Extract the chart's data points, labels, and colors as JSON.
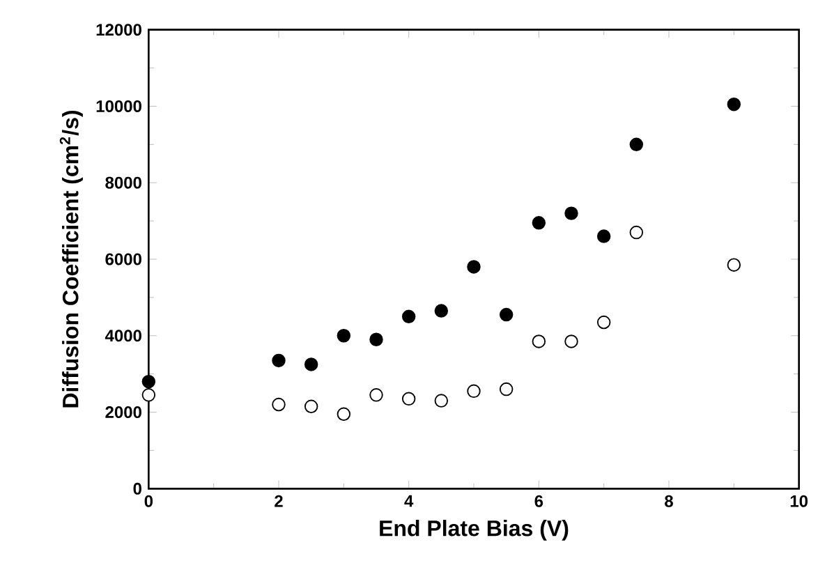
{
  "chart_data": {
    "type": "scatter",
    "xlabel": "End Plate Bias (V)",
    "ylabel": "Diffusion Coefficient (cm$^{2}$/s)",
    "xlim": [
      0,
      10
    ],
    "ylim": [
      0,
      12000
    ],
    "xticks": [
      0,
      2,
      4,
      6,
      8,
      10
    ],
    "yticks": [
      0,
      2000,
      4000,
      6000,
      8000,
      10000,
      12000
    ],
    "marker": "circle",
    "grid": false,
    "x": [
      0,
      2,
      2.5,
      3,
      3.5,
      4,
      4.5,
      5,
      5.5,
      6,
      6.5,
      7,
      7.5,
      9
    ],
    "series": [
      {
        "color": "#000000",
        "values": [
          2800,
          3350,
          3250,
          4000,
          3900,
          4500,
          4650,
          5800,
          4550,
          6950,
          7200,
          6600,
          9000,
          10050
        ]
      },
      {
        "color": "#000000",
        "values": [
          2450,
          2200,
          2150,
          1950,
          2450,
          2350,
          2300,
          2550,
          2600,
          3850,
          3850,
          4350,
          6700,
          5850
        ]
      }
    ]
  }
}
